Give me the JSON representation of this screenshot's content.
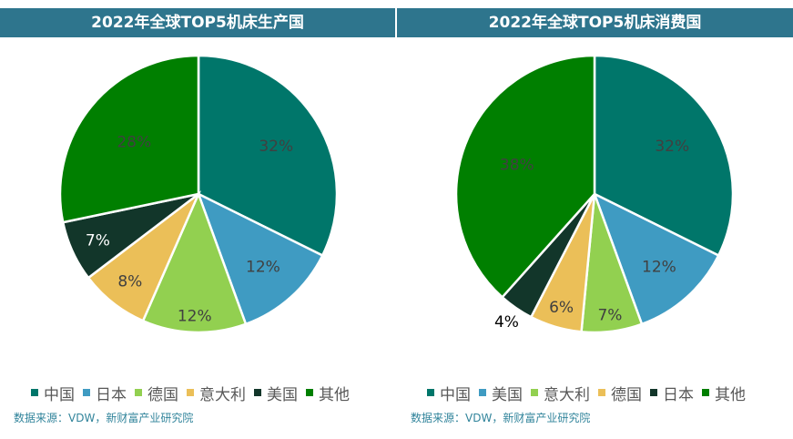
{
  "colors": {
    "header_bg": "#2e758d",
    "中国": "#00766a",
    "日本_left": "#3f9bc2",
    "德国_left": "#92d050",
    "意大利_left": "#ebbf58",
    "美国_left": "#12362a",
    "其他": "#007f00",
    "source_text": "#31849b"
  },
  "charts": [
    {
      "title": "2022年全球TOP5机床生产国",
      "legend": [
        {
          "label": "中国",
          "color": "#00766a"
        },
        {
          "label": "日本",
          "color": "#3f9bc2"
        },
        {
          "label": "德国",
          "color": "#92d050"
        },
        {
          "label": "意大利",
          "color": "#ebbf58"
        },
        {
          "label": "美国",
          "color": "#12362a"
        },
        {
          "label": "其他",
          "color": "#007f00"
        }
      ],
      "source": "数据来源：VDW，新财富产业研究院"
    },
    {
      "title": "2022年全球TOP5机床消费国",
      "legend": [
        {
          "label": "中国",
          "color": "#00766a"
        },
        {
          "label": "美国",
          "color": "#3f9bc2"
        },
        {
          "label": "意大利",
          "color": "#92d050"
        },
        {
          "label": "德国",
          "color": "#ebbf58"
        },
        {
          "label": "日本",
          "color": "#12362a"
        },
        {
          "label": "其他",
          "color": "#007f00"
        }
      ],
      "source": "数据来源：VDW，新财富产业研究院"
    }
  ],
  "chart_data": [
    {
      "type": "pie",
      "title": "2022年全球TOP5机床生产国",
      "categories": [
        "中国",
        "日本",
        "德国",
        "意大利",
        "美国",
        "其他"
      ],
      "values": [
        32,
        12,
        12,
        8,
        7,
        28
      ],
      "labels": [
        "32%",
        "12%",
        "12%",
        "8%",
        "7%",
        "28%"
      ],
      "colors": [
        "#00766a",
        "#3f9bc2",
        "#92d050",
        "#ebbf58",
        "#12362a",
        "#007f00"
      ],
      "legend_position": "bottom"
    },
    {
      "type": "pie",
      "title": "2022年全球TOP5机床消费国",
      "categories": [
        "中国",
        "美国",
        "意大利",
        "德国",
        "日本",
        "其他"
      ],
      "values": [
        32,
        12,
        7,
        6,
        4,
        38
      ],
      "labels": [
        "32%",
        "12%",
        "7%",
        "6%",
        "4%",
        "38%"
      ],
      "colors": [
        "#00766a",
        "#3f9bc2",
        "#92d050",
        "#ebbf58",
        "#12362a",
        "#007f00"
      ],
      "legend_position": "bottom"
    }
  ]
}
